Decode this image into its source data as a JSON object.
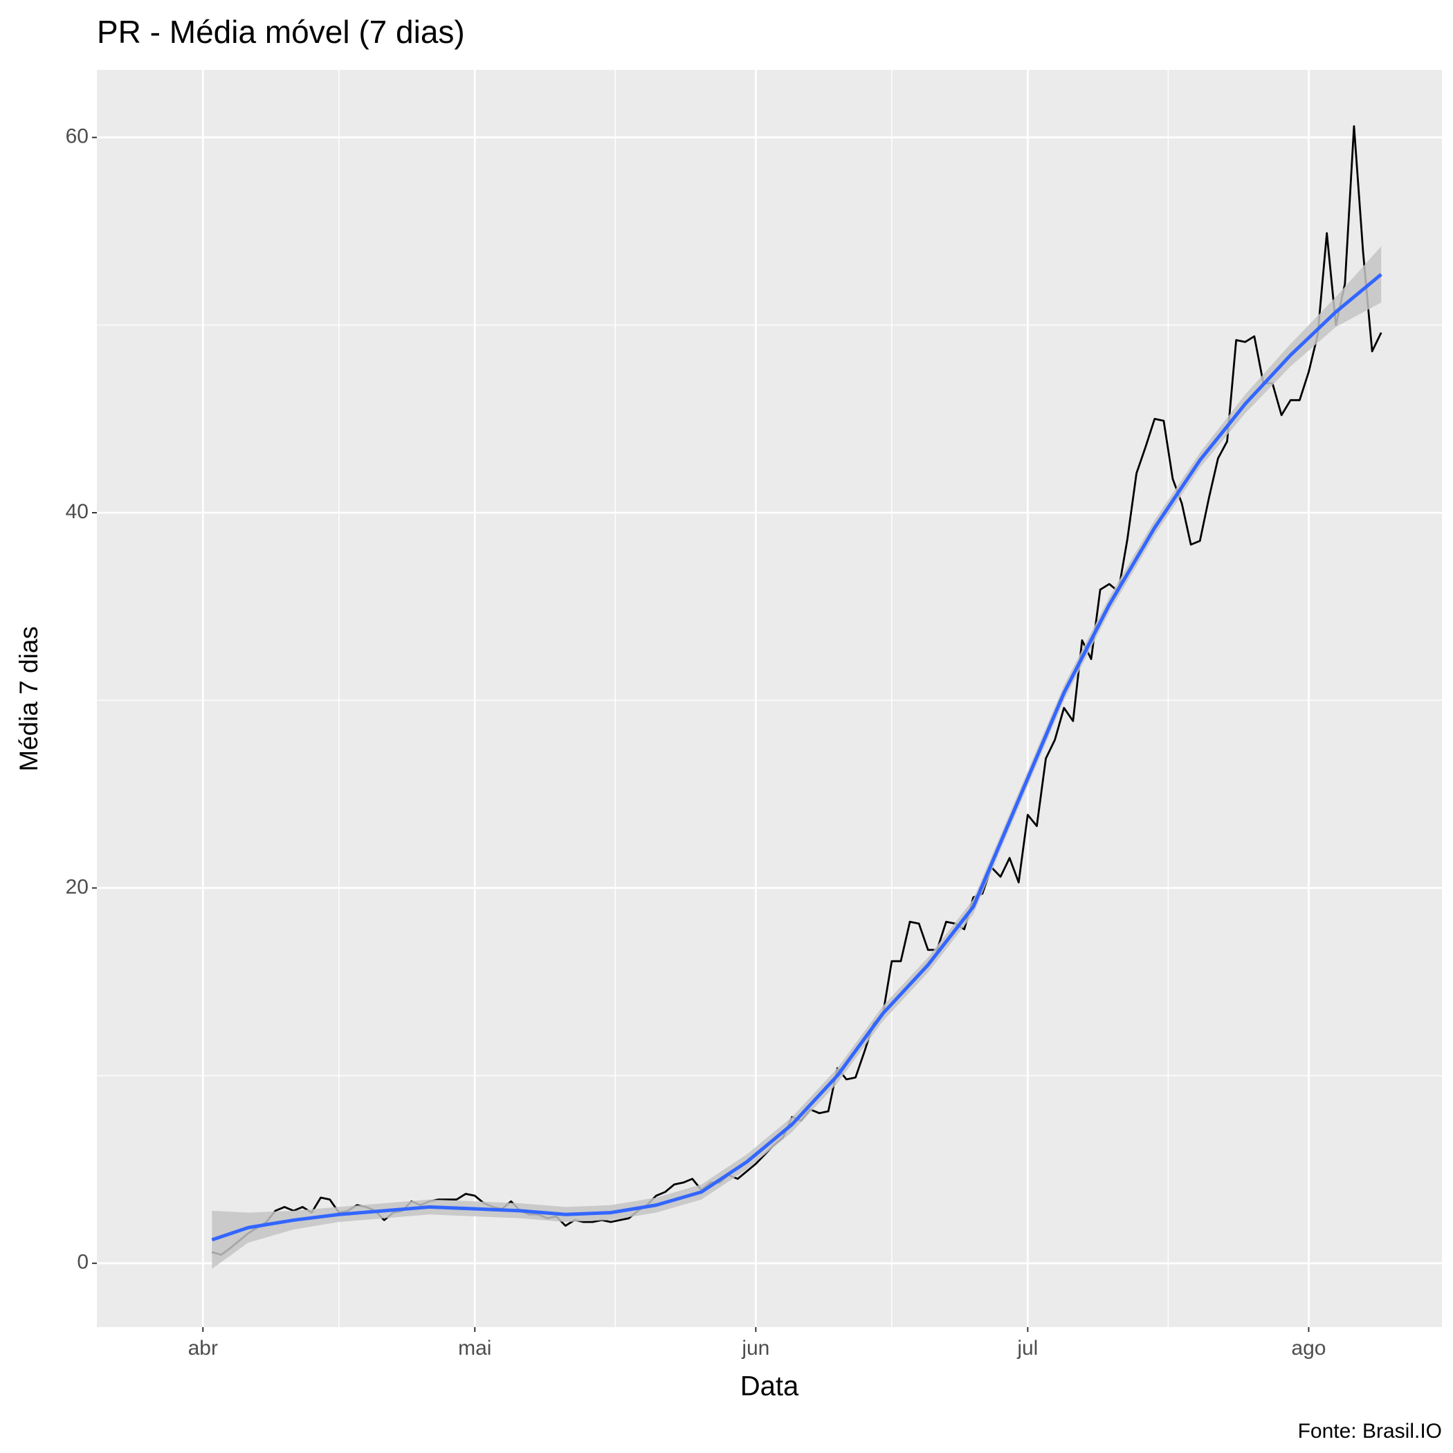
{
  "chart_data": {
    "type": "line",
    "title": "PR - Média móvel (7 dias)",
    "x_label": "Data",
    "y_label": "Média 7 dias",
    "caption": "Fonte: Brasil.IO",
    "xlim": [
      -11.7,
      136.7
    ],
    "ylim": [
      -3.4,
      63.6
    ],
    "xticks": [
      {
        "value": 0,
        "label": "abr"
      },
      {
        "value": 30,
        "label": "mai"
      },
      {
        "value": 61,
        "label": "jun"
      },
      {
        "value": 91,
        "label": "jul"
      },
      {
        "value": 122,
        "label": "ago"
      }
    ],
    "minor_xticks": [
      15,
      45.5,
      76,
      106.5
    ],
    "yticks": [
      0,
      20,
      40,
      60
    ],
    "minor_yticks": [
      10,
      30,
      50
    ],
    "grid": true,
    "background": "#ebebeb",
    "series": [
      {
        "color": "#000000",
        "x": [
          1,
          2,
          3,
          4,
          5,
          6,
          7,
          8,
          9,
          10,
          11,
          12,
          13,
          14,
          15,
          16,
          17,
          18,
          19,
          20,
          21,
          22,
          23,
          24,
          25,
          26,
          27,
          28,
          29,
          30,
          31,
          32,
          33,
          34,
          35,
          36,
          37,
          38,
          39,
          40,
          41,
          42,
          43,
          44,
          45,
          46,
          47,
          48,
          49,
          50,
          51,
          52,
          53,
          54,
          55,
          56,
          57,
          58,
          59,
          60,
          61,
          62,
          63,
          64,
          65,
          66,
          67,
          68,
          69,
          70,
          71,
          72,
          73,
          74,
          75,
          76,
          77,
          78,
          79,
          80,
          81,
          82,
          83,
          84,
          85,
          86,
          87,
          88,
          89,
          90,
          91,
          92,
          93,
          94,
          95,
          96,
          97,
          98,
          99,
          100,
          101,
          102,
          103,
          104,
          105,
          106,
          107,
          108,
          109,
          110,
          111,
          112,
          113,
          114,
          115,
          116,
          117,
          118,
          119,
          120,
          121,
          122,
          123,
          124,
          125,
          126,
          127,
          128,
          129,
          130
        ],
        "values": [
          0.6,
          0.45,
          0.8,
          1.2,
          1.6,
          1.9,
          2.2,
          2.8,
          3.0,
          2.8,
          3.0,
          2.7,
          3.5,
          3.4,
          2.7,
          2.8,
          3.1,
          3.0,
          2.8,
          2.3,
          2.7,
          2.8,
          3.3,
          3.1,
          3.3,
          3.4,
          3.4,
          3.4,
          3.7,
          3.6,
          3.2,
          3.0,
          2.9,
          3.3,
          2.8,
          2.6,
          2.6,
          2.4,
          2.5,
          2.0,
          2.3,
          2.2,
          2.2,
          2.3,
          2.2,
          2.3,
          2.4,
          2.8,
          3.1,
          3.6,
          3.8,
          4.2,
          4.3,
          4.5,
          3.9,
          4.3,
          4.3,
          4.7,
          4.5,
          4.9,
          5.3,
          5.8,
          6.3,
          6.7,
          7.8,
          7.6,
          8.2,
          8.0,
          8.1,
          10.4,
          9.8,
          9.9,
          11.3,
          12.8,
          13.2,
          16.1,
          16.1,
          18.2,
          18.1,
          16.7,
          16.7,
          18.2,
          18.1,
          17.8,
          19.5,
          19.7,
          21.1,
          20.6,
          21.6,
          20.3,
          23.9,
          23.3,
          26.9,
          27.9,
          29.6,
          28.9,
          33.2,
          32.2,
          35.9,
          36.2,
          35.8,
          38.6,
          42.1,
          43.5,
          45.0,
          44.9,
          41.8,
          40.5,
          38.3,
          38.5,
          40.8,
          42.9,
          43.8,
          49.2,
          49.1,
          49.4,
          46.9,
          46.9,
          45.2,
          46.0,
          46.0,
          47.5,
          49.5,
          54.9,
          50.0,
          52.2,
          60.6,
          53.9,
          48.6,
          49.6
        ]
      },
      {
        "color": "#3366ff",
        "band_color": "#c4c4c4",
        "x": [
          1,
          5,
          10,
          15,
          20,
          25,
          30,
          35,
          40,
          45,
          50,
          55,
          60,
          65,
          70,
          75,
          80,
          85,
          90,
          95,
          100,
          105,
          110,
          115,
          120,
          125,
          130
        ],
        "values": [
          1.25,
          1.9,
          2.3,
          2.6,
          2.8,
          3.0,
          2.9,
          2.8,
          2.6,
          2.7,
          3.1,
          3.8,
          5.4,
          7.4,
          10.0,
          13.3,
          15.9,
          19.0,
          24.7,
          30.4,
          35.1,
          39.2,
          42.8,
          45.8,
          48.4,
          50.7,
          52.7
        ],
        "lower": [
          -0.3,
          1.1,
          1.8,
          2.2,
          2.4,
          2.6,
          2.5,
          2.4,
          2.2,
          2.3,
          2.7,
          3.4,
          5.0,
          7.0,
          9.6,
          12.9,
          15.5,
          18.6,
          24.3,
          30.0,
          34.7,
          38.8,
          42.4,
          45.3,
          47.8,
          49.9,
          51.2
        ],
        "upper": [
          2.8,
          2.7,
          2.8,
          3.0,
          3.2,
          3.4,
          3.3,
          3.2,
          3.0,
          3.1,
          3.5,
          4.2,
          5.8,
          7.8,
          10.4,
          13.7,
          16.3,
          19.4,
          25.1,
          30.8,
          35.5,
          39.6,
          43.2,
          46.3,
          49.0,
          51.5,
          54.2
        ]
      }
    ]
  }
}
